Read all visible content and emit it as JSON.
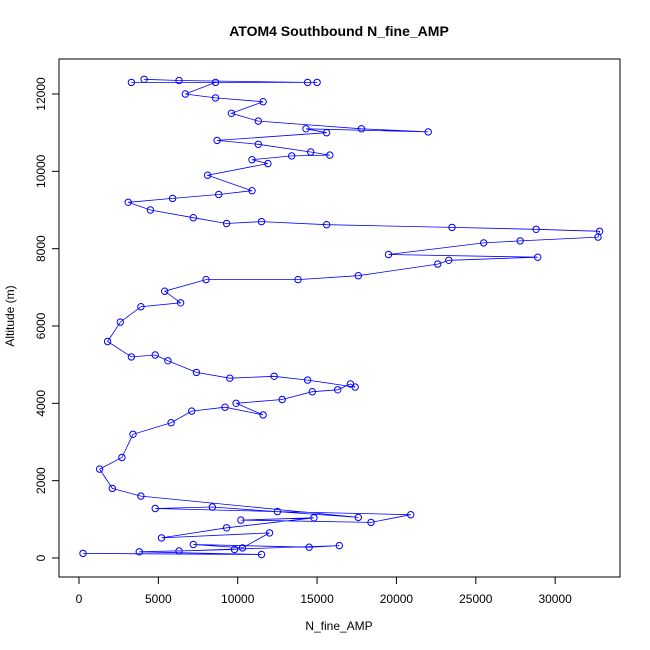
{
  "chart_data": {
    "type": "scatter",
    "title": "ATOM4 Southbound N_fine_AMP",
    "xlabel": "N_fine_AMP",
    "ylabel": "Altitude (m)",
    "xlim": [
      0,
      33000
    ],
    "ylim": [
      0,
      12400
    ],
    "x_ticks": [
      0,
      5000,
      10000,
      15000,
      20000,
      25000,
      30000
    ],
    "y_ticks": [
      0,
      2000,
      4000,
      6000,
      8000,
      10000,
      12000
    ],
    "grid": false,
    "legend": "none",
    "color": "#0000ff",
    "marker": "open-circle",
    "connected_by_lines": true,
    "series": [
      {
        "points": [
          [
            250,
            120
          ],
          [
            11500,
            90
          ],
          [
            3800,
            160
          ],
          [
            9800,
            220
          ],
          [
            6300,
            180
          ],
          [
            16400,
            320
          ],
          [
            14500,
            280
          ],
          [
            7200,
            350
          ],
          [
            10300,
            260
          ],
          [
            12000,
            650
          ],
          [
            5200,
            520
          ],
          [
            9300,
            780
          ],
          [
            14800,
            1040
          ],
          [
            10200,
            980
          ],
          [
            18400,
            920
          ],
          [
            20900,
            1120
          ],
          [
            12500,
            1200
          ],
          [
            4800,
            1280
          ],
          [
            8400,
            1320
          ],
          [
            17600,
            1050
          ],
          [
            3900,
            1600
          ],
          [
            2100,
            1800
          ],
          [
            1300,
            2300
          ],
          [
            2700,
            2600
          ],
          [
            3400,
            3200
          ],
          [
            5800,
            3500
          ],
          [
            7100,
            3800
          ],
          [
            9200,
            3900
          ],
          [
            11600,
            3700
          ],
          [
            9900,
            4000
          ],
          [
            12800,
            4100
          ],
          [
            14700,
            4300
          ],
          [
            16300,
            4350
          ],
          [
            17100,
            4500
          ],
          [
            17400,
            4420
          ],
          [
            14400,
            4600
          ],
          [
            12300,
            4700
          ],
          [
            9500,
            4650
          ],
          [
            7400,
            4800
          ],
          [
            5600,
            5100
          ],
          [
            4800,
            5250
          ],
          [
            3300,
            5200
          ],
          [
            1800,
            5600
          ],
          [
            2600,
            6100
          ],
          [
            3900,
            6500
          ],
          [
            6400,
            6600
          ],
          [
            5400,
            6900
          ],
          [
            8000,
            7200
          ],
          [
            13800,
            7200
          ],
          [
            17600,
            7300
          ],
          [
            22600,
            7600
          ],
          [
            23300,
            7700
          ],
          [
            28900,
            7780
          ],
          [
            19500,
            7850
          ],
          [
            25500,
            8150
          ],
          [
            27800,
            8200
          ],
          [
            32700,
            8300
          ],
          [
            32800,
            8450
          ],
          [
            28800,
            8500
          ],
          [
            23500,
            8550
          ],
          [
            15600,
            8620
          ],
          [
            11500,
            8700
          ],
          [
            9300,
            8650
          ],
          [
            7200,
            8800
          ],
          [
            4500,
            9000
          ],
          [
            3100,
            9200
          ],
          [
            5900,
            9300
          ],
          [
            8800,
            9400
          ],
          [
            10900,
            9500
          ],
          [
            8100,
            9900
          ],
          [
            11900,
            10200
          ],
          [
            10900,
            10300
          ],
          [
            13400,
            10400
          ],
          [
            15800,
            10420
          ],
          [
            14600,
            10500
          ],
          [
            11300,
            10700
          ],
          [
            8700,
            10800
          ],
          [
            15600,
            11000
          ],
          [
            14300,
            11100
          ],
          [
            22000,
            11020
          ],
          [
            17800,
            11100
          ],
          [
            11300,
            11300
          ],
          [
            9600,
            11500
          ],
          [
            11600,
            11800
          ],
          [
            8600,
            11900
          ],
          [
            6700,
            12000
          ],
          [
            8600,
            12300
          ],
          [
            3300,
            12300
          ],
          [
            15000,
            12300
          ],
          [
            14400,
            12300
          ],
          [
            6300,
            12350
          ],
          [
            4100,
            12380
          ]
        ]
      }
    ]
  }
}
